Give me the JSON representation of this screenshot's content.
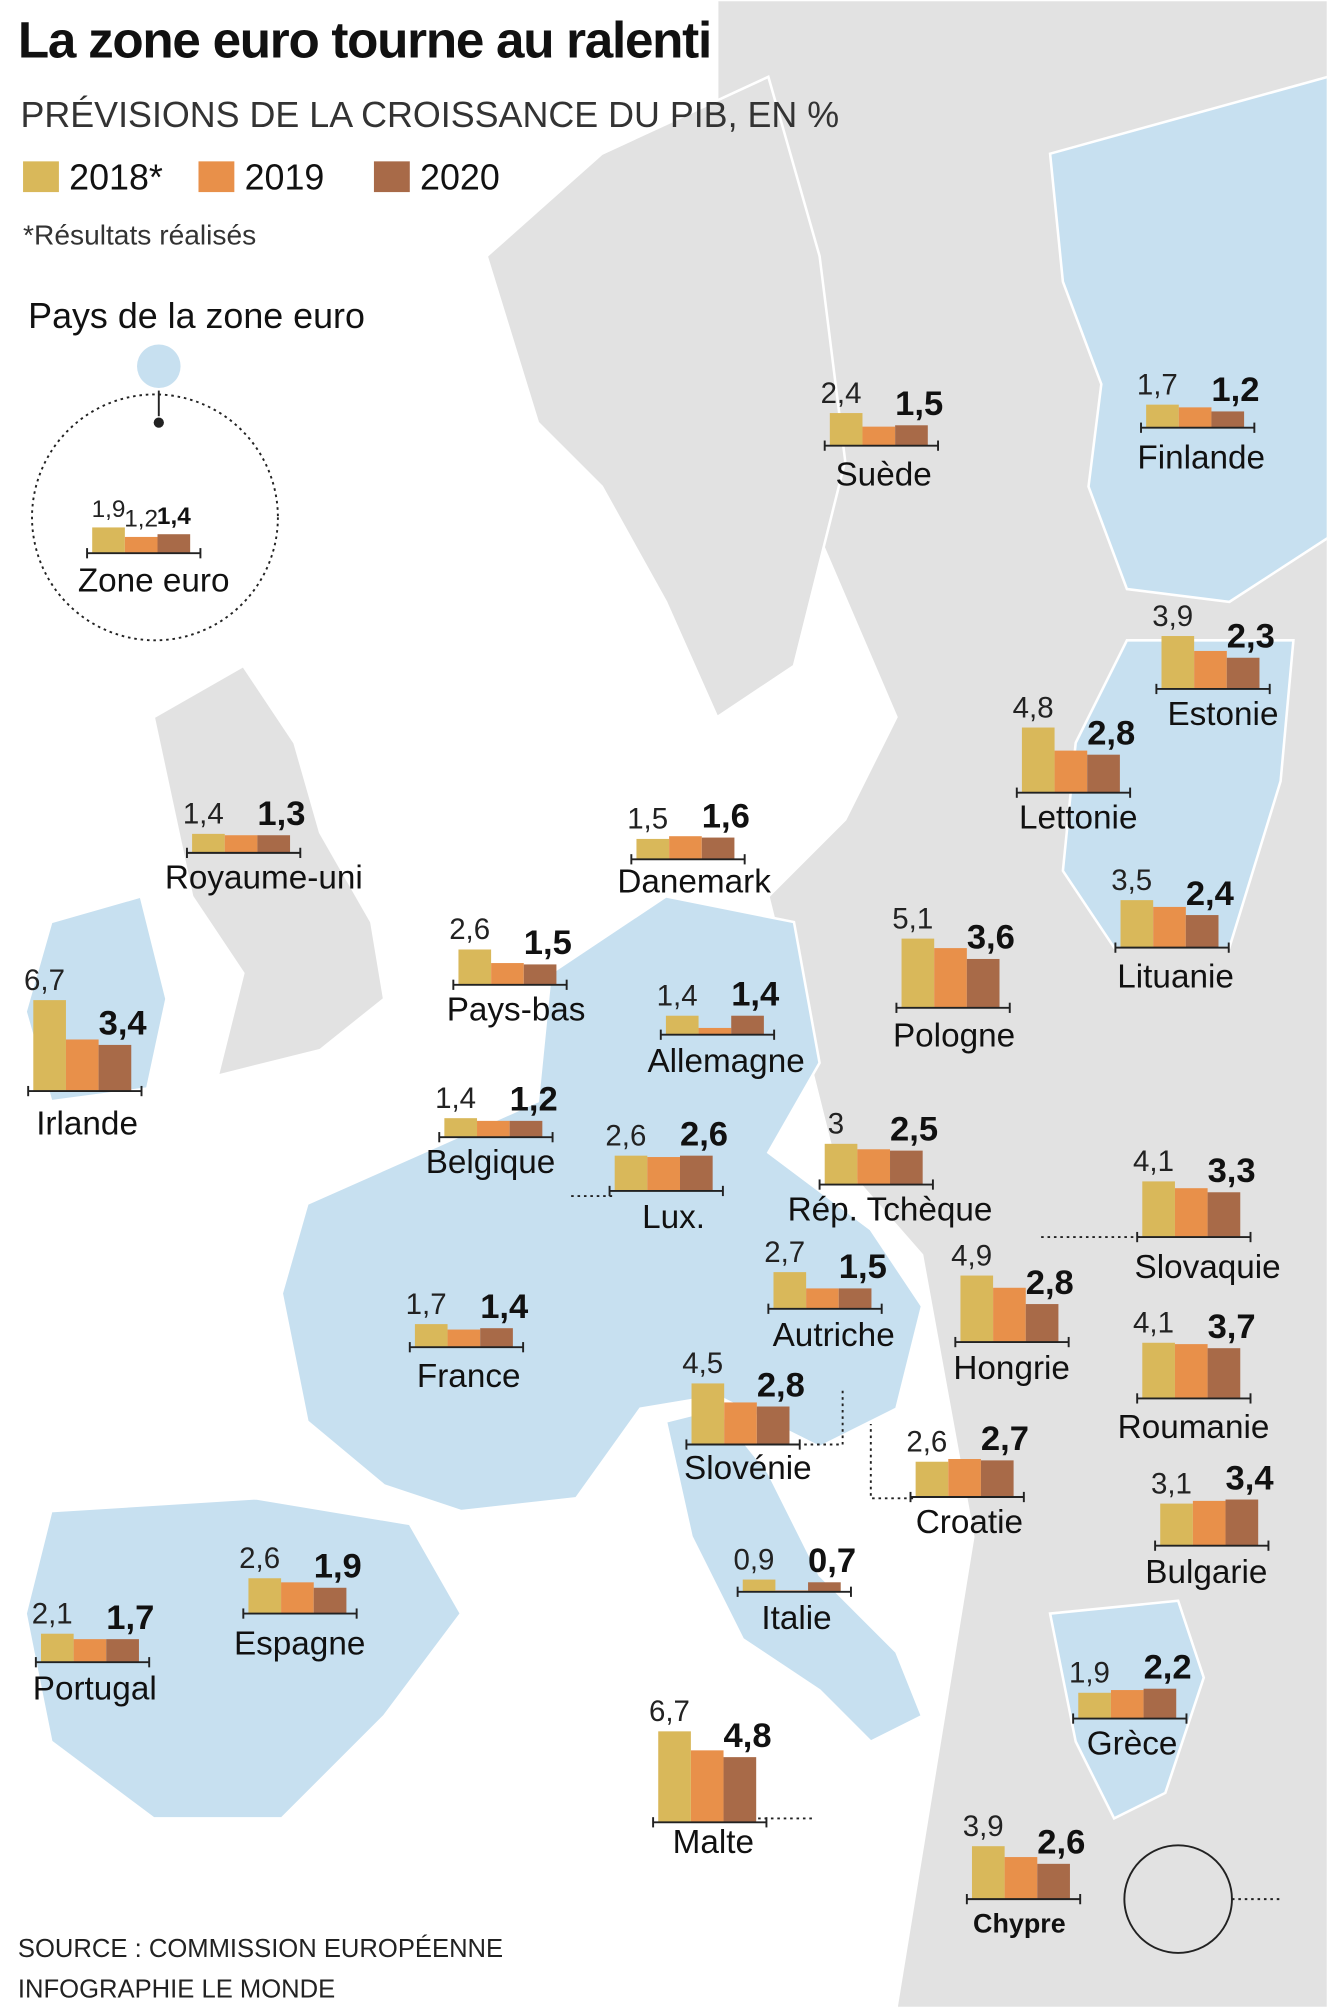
{
  "chart_data": {
    "type": "bar-map",
    "title": "La zone euro tourne au ralenti",
    "subtitle": "PRÉVISIONS DE LA CROISSANCE DU PIB, EN %",
    "note": "*Résultats réalisés",
    "euro_legend": "Pays de la zone euro",
    "source": "SOURCE : COMMISSION EUROPÉENNE",
    "credit": "INFOGRAPHIE LE MONDE",
    "categories": [
      "Zone euro",
      "Suède",
      "Finlande",
      "Estonie",
      "Lettonie",
      "Royaume-uni",
      "Danemark",
      "Lituanie",
      "Pays-bas",
      "Pologne",
      "Irlande",
      "Allemagne",
      "Belgique",
      "Lux.",
      "Rép. Tchèque",
      "Slovaquie",
      "Autriche",
      "Hongrie",
      "France",
      "Roumanie",
      "Slovénie",
      "Croatie",
      "Bulgarie",
      "Espagne",
      "Italie",
      "Portugal",
      "Grèce",
      "Malte",
      "Chypre"
    ],
    "series": [
      {
        "name": "2018*",
        "color": "#d9b85a",
        "values": [
          1.9,
          2.4,
          1.7,
          3.9,
          4.8,
          1.4,
          1.5,
          3.5,
          2.6,
          5.1,
          6.7,
          1.4,
          1.4,
          2.6,
          3,
          4.1,
          2.7,
          4.9,
          1.7,
          4.1,
          4.5,
          2.6,
          3.1,
          2.6,
          0.9,
          2.1,
          1.9,
          6.7,
          3.9
        ],
        "value_labels": [
          "1,9",
          "2,4",
          "1,7",
          "3,9",
          "4,8",
          "1,4",
          "1,5",
          "3,5",
          "2,6",
          "5,1",
          "6,7",
          "1,4",
          "1,4",
          "2,6",
          "3",
          "4,1",
          "2,7",
          "4,9",
          "1,7",
          "4,1",
          "4,5",
          "2,6",
          "3,1",
          "2,6",
          "0,9",
          "2,1",
          "1,9",
          "6,7",
          "3,9"
        ]
      },
      {
        "name": "2019",
        "color": "#e8904a",
        "values": [
          1.2,
          1.4,
          1.5,
          2.8,
          3.1,
          1.3,
          1.7,
          3.0,
          1.6,
          4.4,
          3.8,
          0.5,
          1.2,
          2.5,
          2.6,
          3.6,
          1.5,
          4.0,
          1.3,
          4.0,
          3.1,
          2.8,
          3.3,
          2.3,
          0.1,
          1.7,
          2.1,
          5.3,
          3.1
        ],
        "value_labels": [
          "1,2",
          null,
          null,
          null,
          null,
          null,
          null,
          null,
          null,
          null,
          null,
          null,
          null,
          null,
          null,
          null,
          null,
          null,
          null,
          null,
          null,
          null,
          null,
          null,
          null,
          null,
          null,
          null,
          null
        ]
      },
      {
        "name": "2020",
        "color": "#a86a48",
        "values": [
          1.4,
          1.5,
          1.2,
          2.3,
          2.8,
          1.3,
          1.6,
          2.4,
          1.5,
          3.6,
          3.4,
          1.4,
          1.2,
          2.6,
          2.5,
          3.3,
          1.5,
          2.8,
          1.4,
          3.7,
          2.8,
          2.7,
          3.4,
          1.9,
          0.7,
          1.7,
          2.2,
          4.8,
          2.6
        ],
        "value_labels": [
          "1,4",
          "1,5",
          "1,2",
          "2,3",
          "2,8",
          "1,3",
          "1,6",
          "2,4",
          "1,5",
          "3,6",
          "3,4",
          "1,4",
          "1,2",
          "2,6",
          "2,5",
          "3,3",
          "1,5",
          "2,8",
          "1,4",
          "3,7",
          "2,8",
          "2,7",
          "3,4",
          "1,9",
          "0,7",
          "1,7",
          "2,2",
          "4,8",
          "2,6"
        ]
      }
    ]
  }
}
